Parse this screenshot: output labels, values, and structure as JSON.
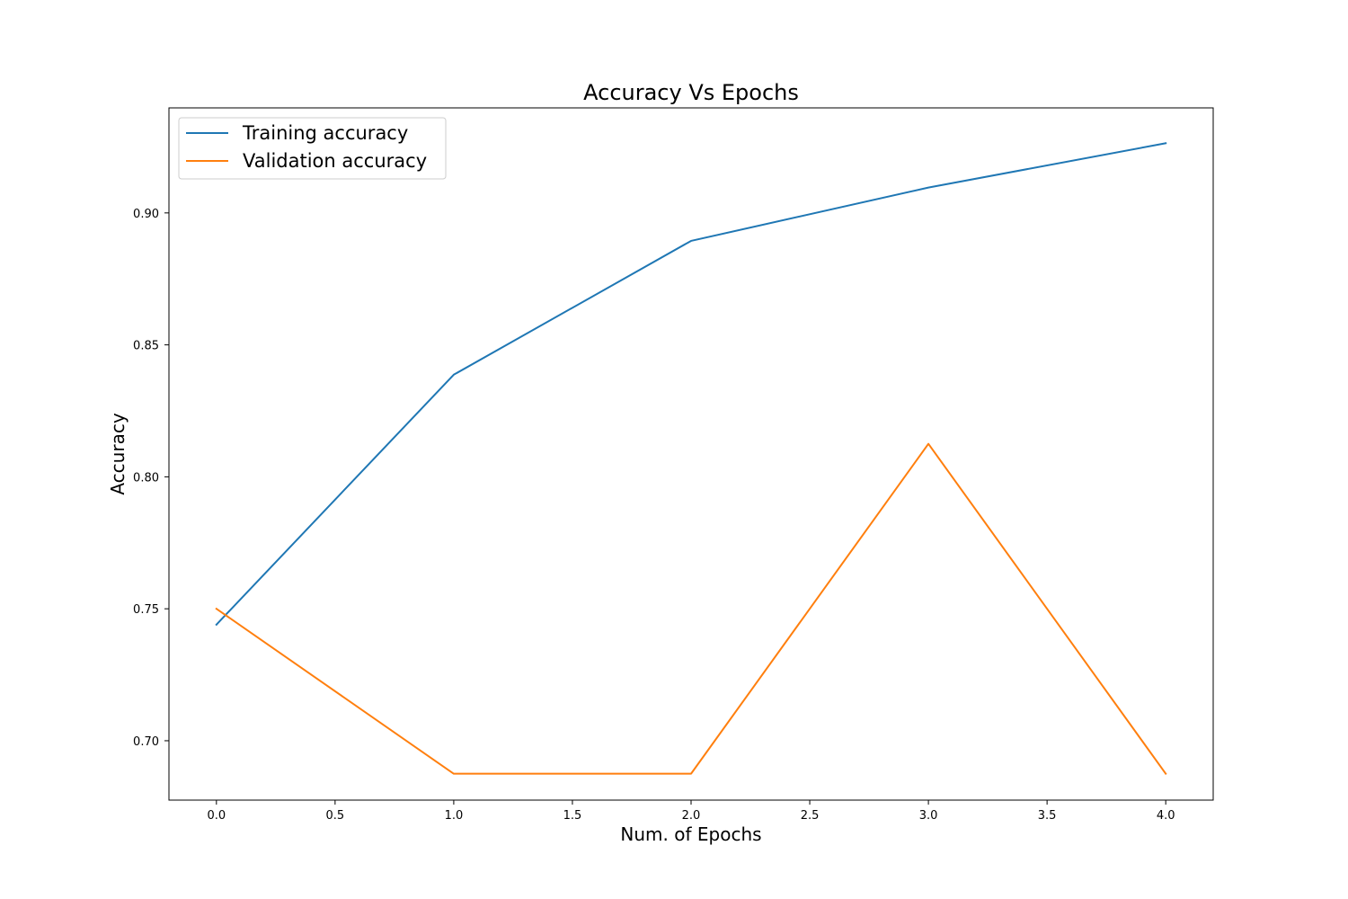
{
  "chart_data": {
    "type": "line",
    "title": "Accuracy Vs Epochs",
    "xlabel": "Num. of Epochs",
    "ylabel": "Accuracy",
    "x": [
      0,
      1,
      2,
      3,
      4
    ],
    "xlim": [
      -0.2,
      4.2
    ],
    "ylim": [
      0.6775,
      0.9398
    ],
    "xticks": [
      0.0,
      0.5,
      1.0,
      1.5,
      2.0,
      2.5,
      3.0,
      3.5,
      4.0
    ],
    "xtick_labels": [
      "0.0",
      "0.5",
      "1.0",
      "1.5",
      "2.0",
      "2.5",
      "3.0",
      "3.5",
      "4.0"
    ],
    "yticks": [
      0.7,
      0.75,
      0.8,
      0.85,
      0.9
    ],
    "ytick_labels": [
      "0.70",
      "0.75",
      "0.80",
      "0.85",
      "0.90"
    ],
    "grid": false,
    "legend_position": "upper-left",
    "series": [
      {
        "name": "Training accuracy",
        "color": "#1f77b4",
        "values": [
          0.744,
          0.8387,
          0.8894,
          0.9096,
          0.9264
        ]
      },
      {
        "name": "Validation accuracy",
        "color": "#ff7f0e",
        "values": [
          0.75,
          0.6875,
          0.6875,
          0.8125,
          0.6875
        ]
      }
    ]
  }
}
